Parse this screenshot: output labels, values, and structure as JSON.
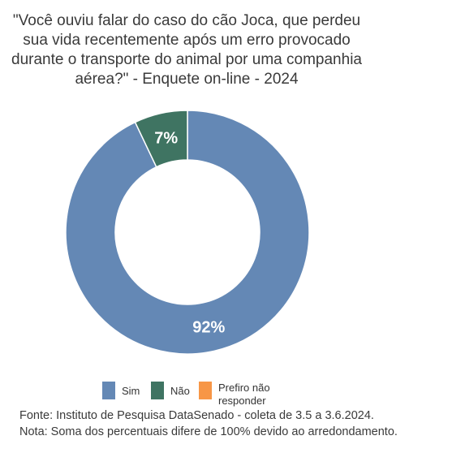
{
  "chart_data": {
    "type": "donut",
    "title": "\"Você ouviu falar do caso do cão Joca, que perdeu sua vida recentemente após um erro provocado durante o transporte do animal por uma companhia aérea?\" - Enquete on-line - 2024",
    "title_lines": [
      "\"Você ouviu falar do caso do cão Joca, que perdeu",
      "sua vida recentemente após um erro provocado",
      "durante o transporte do animal por uma companhia",
      "aérea?\" - Enquete on-line - 2024"
    ],
    "categories": [
      "Sim",
      "Não",
      "Prefiro não responder"
    ],
    "values": [
      92,
      7,
      0
    ],
    "data_labels": [
      "92%",
      "7%",
      ""
    ],
    "colors": [
      "#6488B5",
      "#3F7462",
      "#F79646"
    ],
    "legend_position": "bottom",
    "legend_labels": [
      "Sim",
      "Não",
      "Prefiro não\nresponder"
    ]
  },
  "footnotes": {
    "source": "Fonte: Instituto de Pesquisa DataSenado - coleta de 3.5 a 3.6.2024.",
    "note": "Nota: Soma dos percentuais difere de 100% devido ao arredondamento."
  }
}
